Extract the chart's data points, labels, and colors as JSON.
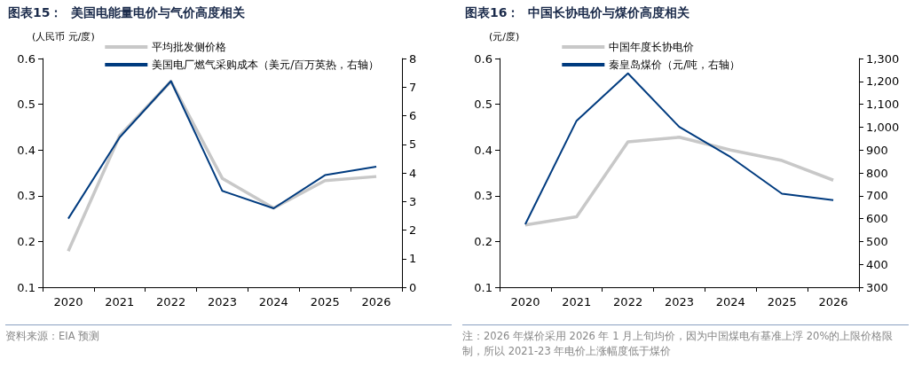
{
  "chart_data": [
    {
      "type": "line",
      "title": "图表15：  美国电能量电价与气价高度相关",
      "ylabel": "(人民币 元/度)",
      "categories": [
        "2020",
        "2021",
        "2022",
        "2023",
        "2024",
        "2025",
        "2026"
      ],
      "series": [
        {
          "name": "平均批发侧价格",
          "color": "#c8c8c8",
          "values": [
            0.179,
            0.431,
            0.55,
            0.338,
            0.273,
            0.333,
            0.342
          ]
        },
        {
          "name": "美国电厂燃气采购成本（美元/百万英热，右轴）",
          "color": "#003b7f",
          "axis": "y2",
          "values": [
            2.4,
            5.24,
            7.21,
            3.37,
            2.76,
            3.92,
            4.22
          ]
        }
      ],
      "ylim": [
        0.1,
        0.6
      ],
      "yticks": [
        0.1,
        0.2,
        0.3,
        0.4,
        0.5,
        0.6
      ],
      "y2lim": [
        0,
        8
      ],
      "y2ticks": [
        0,
        1,
        2,
        3,
        4,
        5,
        6,
        7,
        8
      ],
      "legend": "top",
      "grid": false,
      "marker": "none",
      "annotations": [
        "资料来源：EIA 预测"
      ]
    },
    {
      "type": "line",
      "title": "图表16：  中国长协电价与煤价高度相关",
      "ylabel": "(元/度)",
      "categories": [
        "2020",
        "2021",
        "2022",
        "2023",
        "2024",
        "2025",
        "2026"
      ],
      "series": [
        {
          "name": "中国年度长协电价",
          "color": "#c8c8c8",
          "values": [
            0.236,
            0.254,
            0.418,
            0.428,
            0.4,
            0.377,
            0.334
          ]
        },
        {
          "name": "秦皇岛煤价（元/吨，右轴）",
          "color": "#003b7f",
          "axis": "y2",
          "values": [
            575,
            1028,
            1235,
            1001,
            869,
            709,
            681
          ]
        }
      ],
      "ylim": [
        0.1,
        0.6
      ],
      "yticks": [
        0.1,
        0.2,
        0.3,
        0.4,
        0.5,
        0.6
      ],
      "y2lim": [
        300,
        1300
      ],
      "y2ticks": [
        300,
        400,
        500,
        600,
        700,
        800,
        900,
        {
          "value": 1000,
          "label": "1,000"
        },
        {
          "value": 1100,
          "label": "1,100"
        },
        {
          "value": 1200,
          "label": "1,200"
        },
        {
          "value": 1300,
          "label": "1,300"
        }
      ],
      "legend": "top",
      "grid": false,
      "marker": "none",
      "annotations": [
        "注：2026 年煤价采用 2026 年 1 月上旬均价，因为中国煤电有基准上浮 20%的上限价格限制，所以 2021-23 年电价上涨幅度低于煤价"
      ]
    }
  ]
}
